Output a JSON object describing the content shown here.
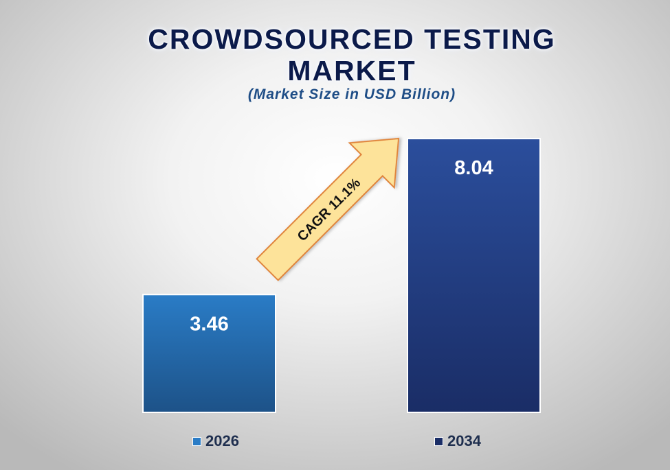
{
  "chart_data": {
    "type": "bar",
    "title": "CROWDSOURCED TESTING MARKET",
    "title_lines": [
      "CROWDSOURCED TESTING",
      "MARKET"
    ],
    "subtitle": "(Market Size in USD Billion)",
    "categories": [
      "2026",
      "2034"
    ],
    "values": [
      3.46,
      8.04
    ],
    "value_labels": [
      "3.46",
      "8.04"
    ],
    "annotation": "CAGR 11.1%",
    "legend": [
      "2026",
      "2034"
    ],
    "legend_position": "bottom",
    "ylim": [
      0,
      8.04
    ],
    "grid": false,
    "axes_visible": false,
    "colors": {
      "bar_2026_top": "#2a7cc6",
      "bar_2026_bottom": "#1d5288",
      "bar_2034_top": "#2b4e9c",
      "bar_2034_bottom": "#1a2d66",
      "arrow_fill": "#fde39a",
      "arrow_stroke": "#e0843a",
      "title": "#0b1a4a",
      "subtitle": "#1e4d86"
    }
  }
}
